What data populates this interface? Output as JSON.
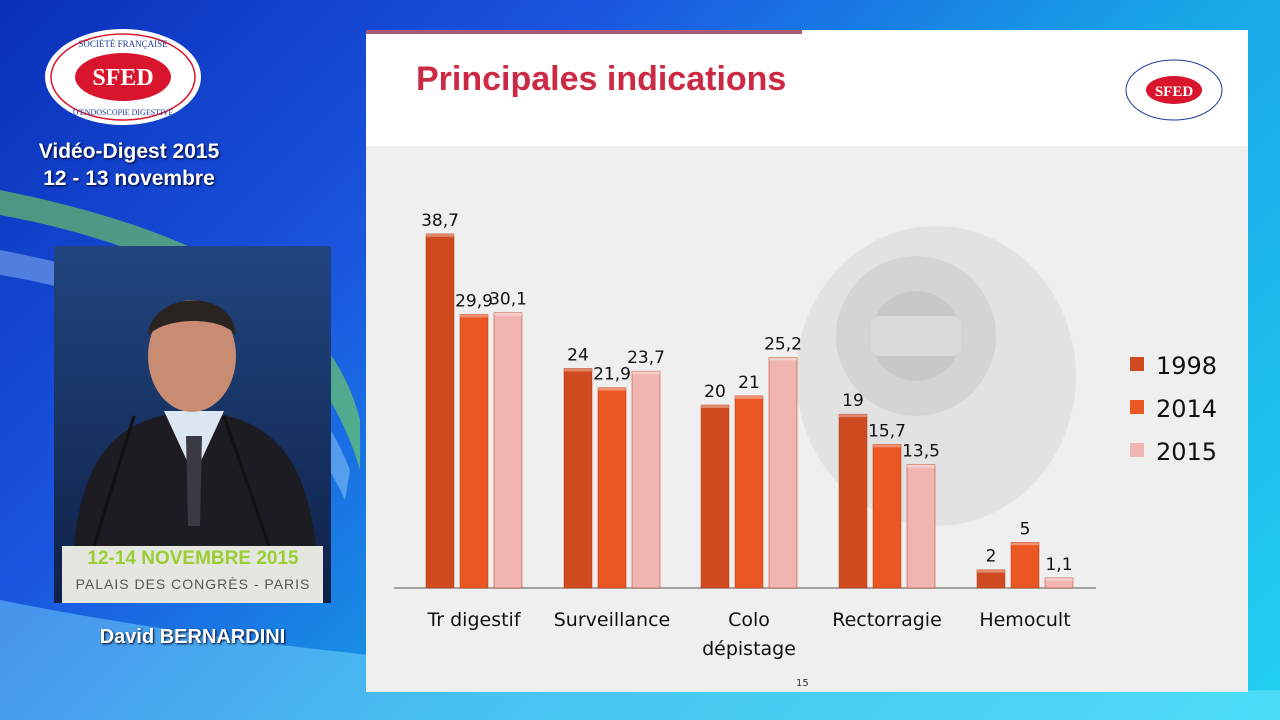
{
  "header": {
    "event": "Vidéo-Digest 2015",
    "dates": "12 - 13 novembre"
  },
  "logo": {
    "top_arc": "SOCIÉTÉ FRANÇAISE",
    "center": "SFED",
    "bottom_arc": "D'ENDOSCOPIE DIGESTIVE",
    "color": "#d8152c"
  },
  "video": {
    "podium_line1": "12-14 NOVEMBRE 2015",
    "podium_line2": "PALAIS DES CONGRÈS - PARIS"
  },
  "speaker": {
    "name": "David BERNARDINI"
  },
  "slide": {
    "title": "Principales indications",
    "page": "15"
  },
  "colors": {
    "title": "#cc2a44",
    "series_1998": "#cf4a1e",
    "series_2014": "#ea5722",
    "series_2015": "#f0b5b0",
    "background_gradient": [
      "#0a2fb8",
      "#22d0f0"
    ]
  },
  "chart_data": {
    "type": "bar",
    "categories": [
      "Tr digestif",
      "Surveillance",
      "Colo dépistage",
      "Rectorragie",
      "Hemocult"
    ],
    "category_lines": [
      [
        "Tr digestif"
      ],
      [
        "Surveillance"
      ],
      [
        "Colo",
        "dépistage"
      ],
      [
        "Rectorragie"
      ],
      [
        "Hemocult"
      ]
    ],
    "series": [
      {
        "name": "1998",
        "values": [
          38.7,
          24,
          20,
          19,
          2
        ],
        "labels": [
          "38,7",
          "24",
          "20",
          "19",
          "2"
        ],
        "color": "#cf4a1e"
      },
      {
        "name": "2014",
        "values": [
          29.9,
          21.9,
          21,
          15.7,
          5
        ],
        "labels": [
          "29,9",
          "21,9",
          "21",
          "15,7",
          "5"
        ],
        "color": "#ea5722"
      },
      {
        "name": "2015",
        "values": [
          30.1,
          23.7,
          25.2,
          13.5,
          1.1
        ],
        "labels": [
          "30,1",
          "23,7",
          "25,2",
          "13,5",
          "1,1"
        ],
        "color": "#f0b5b0"
      }
    ],
    "ylim": [
      0,
      40
    ],
    "grid": false,
    "legend": "right"
  }
}
